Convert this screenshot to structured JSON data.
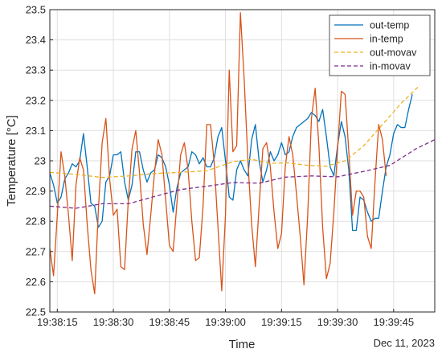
{
  "chart_data": {
    "type": "line",
    "xlabel": "Time",
    "ylabel": "Temperature [°C]",
    "date_label": "Dec 11, 2023",
    "x_ticks": [
      "19:38:15",
      "19:38:30",
      "19:38:45",
      "19:39:00",
      "19:39:15",
      "19:39:30",
      "19:39:45"
    ],
    "xlim": [
      "19:38:13",
      "19:39:56"
    ],
    "ylim": [
      22.5,
      23.5
    ],
    "y_ticks": [
      22.5,
      22.6,
      22.7,
      22.8,
      22.9,
      23,
      23.1,
      23.2,
      23.3,
      23.4,
      23.5
    ],
    "y_tick_labels": [
      "22.5",
      "22.6",
      "22.7",
      "22.8",
      "22.9",
      "23",
      "23.1",
      "23.2",
      "23.3",
      "23.4",
      "23.5"
    ],
    "grid": true,
    "legend_position": "top-right",
    "series": [
      {
        "name": "out-temp",
        "color": "#0072BD",
        "style": "solid",
        "points": [
          [
            "19:38:13",
            22.96
          ],
          [
            "19:38:14",
            22.92
          ],
          [
            "19:38:15",
            22.86
          ],
          [
            "19:38:16",
            22.88
          ],
          [
            "19:38:17",
            22.94
          ],
          [
            "19:38:18",
            22.96
          ],
          [
            "19:38:19",
            22.99
          ],
          [
            "19:38:20",
            22.98
          ],
          [
            "19:38:21",
            23.0
          ],
          [
            "19:38:22",
            23.09
          ],
          [
            "19:38:23",
            22.98
          ],
          [
            "19:38:24",
            22.86
          ],
          [
            "19:38:25",
            22.85
          ],
          [
            "19:38:26",
            22.78
          ],
          [
            "19:38:27",
            22.8
          ],
          [
            "19:38:28",
            22.93
          ],
          [
            "19:38:29",
            22.95
          ],
          [
            "19:38:30",
            23.02
          ],
          [
            "19:38:31",
            23.02
          ],
          [
            "19:38:32",
            23.03
          ],
          [
            "19:38:33",
            22.93
          ],
          [
            "19:38:34",
            22.87
          ],
          [
            "19:38:35",
            22.92
          ],
          [
            "19:38:36",
            23.03
          ],
          [
            "19:38:37",
            23.03
          ],
          [
            "19:38:38",
            22.97
          ],
          [
            "19:38:39",
            22.93
          ],
          [
            "19:38:40",
            22.96
          ],
          [
            "19:38:41",
            22.97
          ],
          [
            "19:38:42",
            23.02
          ],
          [
            "19:38:43",
            23.01
          ],
          [
            "19:38:44",
            22.98
          ],
          [
            "19:38:45",
            22.92
          ],
          [
            "19:38:46",
            22.83
          ],
          [
            "19:38:47",
            22.91
          ],
          [
            "19:38:48",
            22.96
          ],
          [
            "19:38:49",
            22.97
          ],
          [
            "19:38:50",
            22.98
          ],
          [
            "19:38:51",
            23.03
          ],
          [
            "19:38:52",
            23.02
          ],
          [
            "19:38:53",
            22.99
          ],
          [
            "19:38:54",
            23.01
          ],
          [
            "19:38:55",
            22.98
          ],
          [
            "19:38:56",
            22.98
          ],
          [
            "19:38:57",
            23.01
          ],
          [
            "19:38:58",
            23.08
          ],
          [
            "19:38:59",
            23.11
          ],
          [
            "19:39:00",
            23.0
          ],
          [
            "19:39:01",
            22.88
          ],
          [
            "19:39:02",
            22.87
          ],
          [
            "19:39:03",
            22.97
          ],
          [
            "19:39:04",
            23.0
          ],
          [
            "19:39:05",
            22.97
          ],
          [
            "19:39:06",
            22.95
          ],
          [
            "19:39:07",
            23.07
          ],
          [
            "19:39:08",
            23.12
          ],
          [
            "19:39:09",
            23.0
          ],
          [
            "19:39:10",
            22.93
          ],
          [
            "19:39:11",
            22.97
          ],
          [
            "19:39:12",
            23.03
          ],
          [
            "19:39:13",
            23.0
          ],
          [
            "19:39:14",
            23.02
          ],
          [
            "19:39:15",
            23.06
          ],
          [
            "19:39:16",
            23.02
          ],
          [
            "19:39:17",
            23.03
          ],
          [
            "19:39:18",
            23.08
          ],
          [
            "19:39:19",
            23.11
          ],
          [
            "19:39:20",
            23.12
          ],
          [
            "19:39:21",
            23.13
          ],
          [
            "19:39:22",
            23.14
          ],
          [
            "19:39:23",
            23.16
          ],
          [
            "19:39:24",
            23.15
          ],
          [
            "19:39:25",
            23.13
          ],
          [
            "19:39:26",
            23.17
          ],
          [
            "19:39:27",
            23.08
          ],
          [
            "19:39:28",
            22.98
          ],
          [
            "19:39:29",
            22.95
          ],
          [
            "19:39:30",
            23.05
          ],
          [
            "19:39:31",
            23.13
          ],
          [
            "19:39:32",
            23.08
          ],
          [
            "19:39:33",
            22.97
          ],
          [
            "19:39:34",
            22.77
          ],
          [
            "19:39:35",
            22.77
          ],
          [
            "19:39:36",
            22.88
          ],
          [
            "19:39:37",
            22.87
          ],
          [
            "19:39:38",
            22.83
          ],
          [
            "19:39:39",
            22.8
          ],
          [
            "19:39:40",
            22.81
          ],
          [
            "19:39:41",
            22.81
          ],
          [
            "19:39:42",
            22.9
          ],
          [
            "19:39:43",
            22.98
          ],
          [
            "19:39:44",
            23.02
          ],
          [
            "19:39:45",
            23.09
          ],
          [
            "19:39:46",
            23.12
          ],
          [
            "19:39:47",
            23.11
          ],
          [
            "19:39:48",
            23.11
          ],
          [
            "19:39:49",
            23.17
          ],
          [
            "19:39:50",
            23.22
          ]
        ]
      },
      {
        "name": "in-temp",
        "color": "#D95319",
        "style": "solid",
        "points": [
          [
            "19:38:13",
            22.71
          ],
          [
            "19:38:14",
            22.62
          ],
          [
            "19:38:15",
            22.82
          ],
          [
            "19:38:16",
            23.03
          ],
          [
            "19:38:17",
            22.95
          ],
          [
            "19:38:18",
            22.82
          ],
          [
            "19:38:19",
            22.67
          ],
          [
            "19:38:20",
            22.92
          ],
          [
            "19:38:21",
            23.01
          ],
          [
            "19:38:22",
            22.97
          ],
          [
            "19:38:23",
            22.79
          ],
          [
            "19:38:24",
            22.64
          ],
          [
            "19:38:25",
            22.56
          ],
          [
            "19:38:26",
            22.84
          ],
          [
            "19:38:27",
            23.06
          ],
          [
            "19:38:28",
            23.14
          ],
          [
            "19:38:29",
            22.94
          ],
          [
            "19:38:30",
            22.82
          ],
          [
            "19:38:31",
            22.84
          ],
          [
            "19:38:32",
            22.65
          ],
          [
            "19:38:33",
            22.64
          ],
          [
            "19:38:34",
            22.87
          ],
          [
            "19:38:35",
            23.04
          ],
          [
            "19:38:36",
            23.1
          ],
          [
            "19:38:37",
            22.96
          ],
          [
            "19:38:38",
            22.79
          ],
          [
            "19:38:39",
            22.69
          ],
          [
            "19:38:40",
            22.82
          ],
          [
            "19:38:41",
            22.96
          ],
          [
            "19:38:42",
            23.07
          ],
          [
            "19:38:43",
            23.02
          ],
          [
            "19:38:44",
            22.87
          ],
          [
            "19:38:45",
            22.72
          ],
          [
            "19:38:46",
            22.7
          ],
          [
            "19:38:47",
            22.86
          ],
          [
            "19:38:48",
            23.02
          ],
          [
            "19:38:49",
            23.06
          ],
          [
            "19:38:50",
            22.97
          ],
          [
            "19:38:51",
            22.8
          ],
          [
            "19:38:52",
            22.67
          ],
          [
            "19:38:53",
            22.68
          ],
          [
            "19:38:54",
            22.85
          ],
          [
            "19:38:55",
            23.12
          ],
          [
            "19:38:56",
            23.12
          ],
          [
            "19:38:57",
            22.99
          ],
          [
            "19:38:58",
            22.78
          ],
          [
            "19:38:59",
            22.57
          ],
          [
            "19:39:00",
            22.82
          ],
          [
            "19:39:01",
            23.3
          ],
          [
            "19:39:02",
            23.03
          ],
          [
            "19:39:03",
            23.05
          ],
          [
            "19:39:04",
            23.49
          ],
          [
            "19:39:05",
            23.27
          ],
          [
            "19:39:06",
            23.0
          ],
          [
            "19:39:07",
            22.79
          ],
          [
            "19:39:08",
            22.65
          ],
          [
            "19:39:09",
            22.85
          ],
          [
            "19:39:10",
            23.04
          ],
          [
            "19:39:11",
            23.06
          ],
          [
            "19:39:12",
            22.98
          ],
          [
            "19:39:13",
            22.83
          ],
          [
            "19:39:14",
            22.71
          ],
          [
            "19:39:15",
            22.76
          ],
          [
            "19:39:16",
            22.98
          ],
          [
            "19:39:17",
            23.08
          ],
          [
            "19:39:18",
            23.02
          ],
          [
            "19:39:19",
            22.89
          ],
          [
            "19:39:20",
            22.75
          ],
          [
            "19:39:21",
            22.59
          ],
          [
            "19:39:22",
            22.82
          ],
          [
            "19:39:23",
            23.14
          ],
          [
            "19:39:24",
            23.24
          ],
          [
            "19:39:25",
            23.05
          ],
          [
            "19:39:26",
            22.78
          ],
          [
            "19:39:27",
            22.61
          ],
          [
            "19:39:28",
            22.66
          ],
          [
            "19:39:29",
            22.83
          ],
          [
            "19:39:30",
            23.04
          ],
          [
            "19:39:31",
            23.23
          ],
          [
            "19:39:32",
            23.22
          ],
          [
            "19:39:33",
            23.03
          ],
          [
            "19:39:34",
            22.82
          ],
          [
            "19:39:35",
            22.9
          ],
          [
            "19:39:36",
            22.9
          ],
          [
            "19:39:37",
            22.88
          ],
          [
            "19:39:38",
            22.75
          ],
          [
            "19:39:39",
            22.71
          ],
          [
            "19:39:40",
            22.93
          ],
          [
            "19:39:41",
            23.12
          ],
          [
            "19:39:42",
            23.07
          ],
          [
            "19:39:43",
            22.95
          ]
        ]
      },
      {
        "name": "out-movav",
        "color": "#EDB120",
        "style": "dashed",
        "points": [
          [
            "19:38:13",
            22.962
          ],
          [
            "19:38:20",
            22.955
          ],
          [
            "19:38:27",
            22.945
          ],
          [
            "19:38:34",
            22.95
          ],
          [
            "19:38:41",
            22.958
          ],
          [
            "19:38:48",
            22.962
          ],
          [
            "19:38:55",
            22.967
          ],
          [
            "19:39:02",
            22.997
          ],
          [
            "19:39:07",
            23.005
          ],
          [
            "19:39:12",
            22.992
          ],
          [
            "19:39:17",
            22.993
          ],
          [
            "19:39:22",
            22.985
          ],
          [
            "19:39:27",
            22.982
          ],
          [
            "19:39:32",
            23.0
          ],
          [
            "19:39:37",
            23.05
          ],
          [
            "19:39:42",
            23.12
          ],
          [
            "19:39:47",
            23.19
          ],
          [
            "19:39:52",
            23.25
          ]
        ]
      },
      {
        "name": "in-movav",
        "color": "#7E2F8E",
        "style": "dashed",
        "points": [
          [
            "19:38:13",
            22.85
          ],
          [
            "19:38:20",
            22.843
          ],
          [
            "19:38:27",
            22.858
          ],
          [
            "19:38:34",
            22.858
          ],
          [
            "19:38:41",
            22.882
          ],
          [
            "19:38:48",
            22.905
          ],
          [
            "19:38:55",
            22.916
          ],
          [
            "19:39:02",
            22.928
          ],
          [
            "19:39:09",
            22.926
          ],
          [
            "19:39:16",
            22.946
          ],
          [
            "19:39:23",
            22.95
          ],
          [
            "19:39:30",
            22.947
          ],
          [
            "19:39:37",
            22.965
          ],
          [
            "19:39:44",
            22.985
          ],
          [
            "19:39:51",
            23.04
          ],
          [
            "19:39:56",
            23.07
          ]
        ]
      }
    ]
  }
}
